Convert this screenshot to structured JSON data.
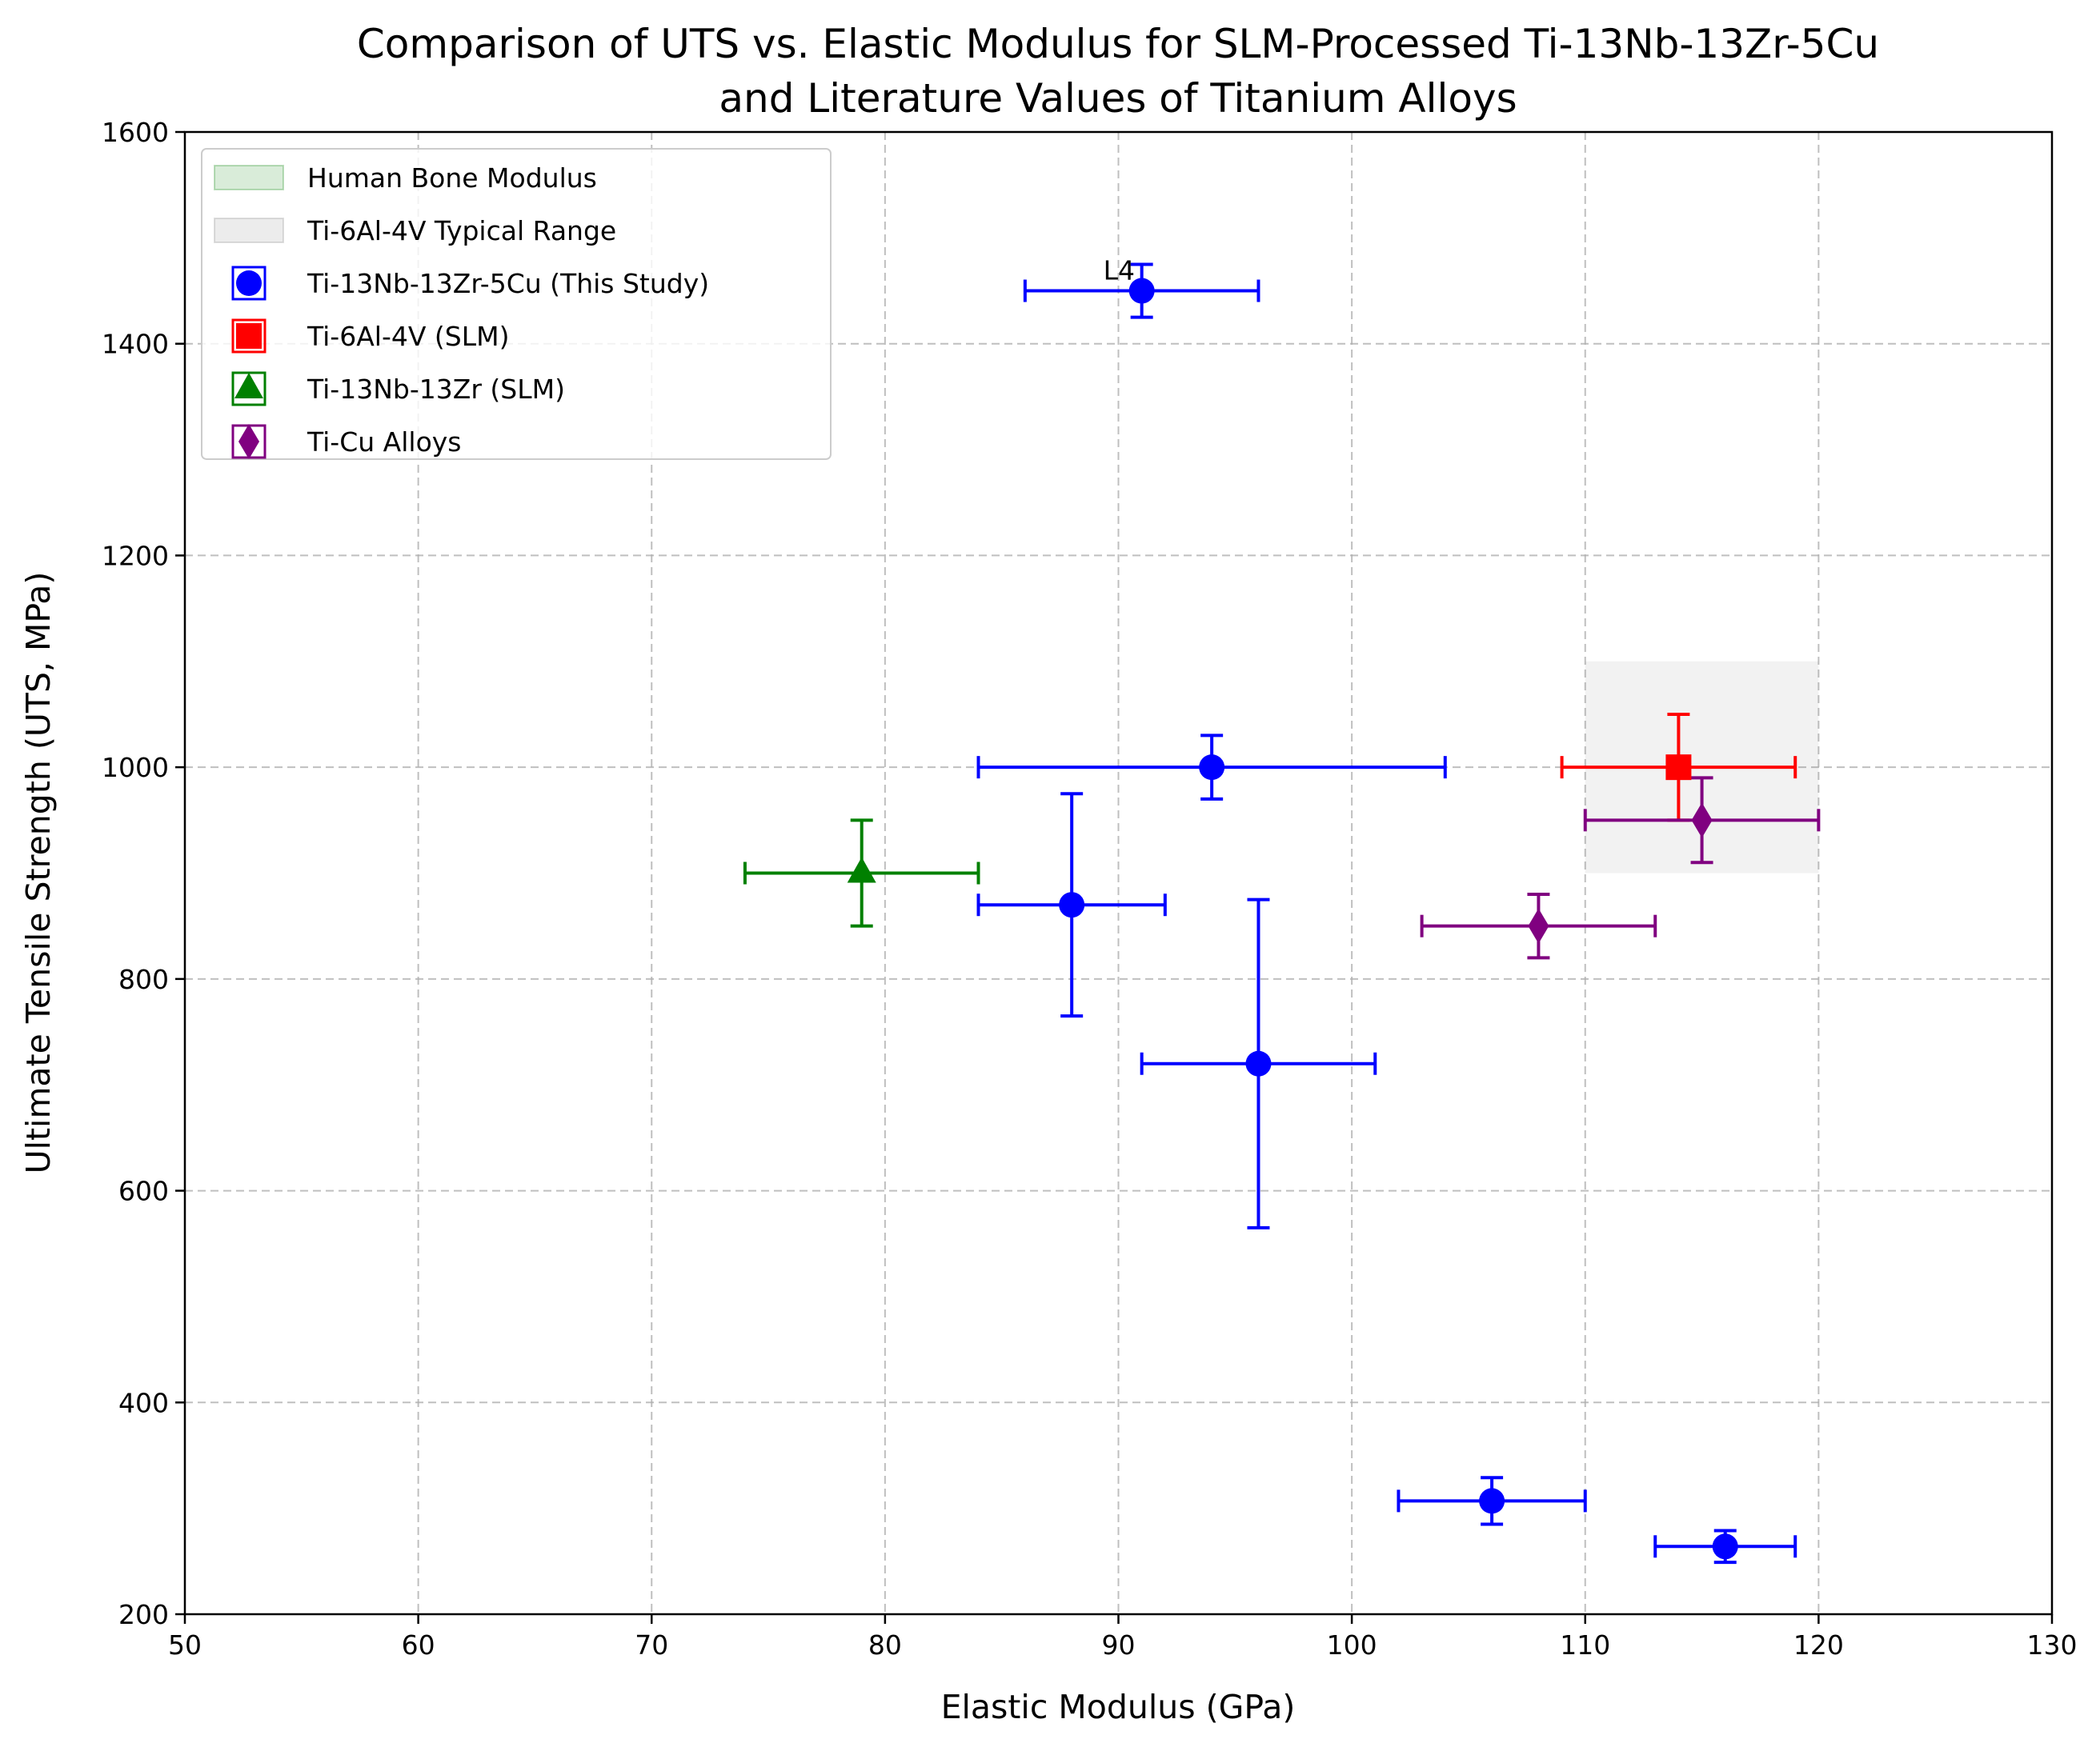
{
  "chart_data": {
    "type": "scatter",
    "title": [
      "Comparison of UTS vs. Elastic Modulus for SLM-Processed Ti-13Nb-13Zr-5Cu",
      "and Literature Values of Titanium Alloys"
    ],
    "xlabel": "Elastic Modulus (GPa)",
    "ylabel": "Ultimate Tensile Strength (UTS, MPa)",
    "xlim": [
      50,
      130
    ],
    "ylim": [
      200,
      1600
    ],
    "xticks": [
      50,
      60,
      70,
      80,
      90,
      100,
      110,
      120,
      130
    ],
    "yticks": [
      200,
      400,
      600,
      800,
      1000,
      1200,
      1400,
      1600
    ],
    "grid": true,
    "legend_position": "upper-left",
    "spans": [
      {
        "name": "Human Bone Modulus",
        "color": "#008000",
        "opacity": 0.1,
        "visible_in_plot": false
      },
      {
        "name": "Ti-6Al-4V Typical Range",
        "color": "#808080",
        "opacity": 0.1,
        "x": [
          110,
          120
        ],
        "y": [
          900,
          1100
        ]
      }
    ],
    "series": [
      {
        "name": "Ti-13Nb-13Zr-5Cu (This Study)",
        "color": "#0000ff",
        "marker": "circle",
        "points": [
          {
            "x": 91,
            "y": 1450,
            "xerr": 5,
            "yerr": 25,
            "label": "L4"
          },
          {
            "x": 94,
            "y": 1000,
            "xerr": 10,
            "yerr": 30
          },
          {
            "x": 88,
            "y": 870,
            "xerr": 4,
            "yerr": 105
          },
          {
            "x": 96,
            "y": 720,
            "xerr": 5,
            "yerr": 155
          },
          {
            "x": 106,
            "y": 307,
            "xerr": 4,
            "yerr": 22
          },
          {
            "x": 116,
            "y": 264,
            "xerr": 3,
            "yerr": 15
          }
        ]
      },
      {
        "name": "Ti-6Al-4V (SLM)",
        "color": "#ff0000",
        "marker": "square",
        "points": [
          {
            "x": 114,
            "y": 1000,
            "xerr": 5,
            "yerr": 50
          }
        ]
      },
      {
        "name": "Ti-13Nb-13Zr (SLM)",
        "color": "#008000",
        "marker": "triangle",
        "points": [
          {
            "x": 79,
            "y": 900,
            "xerr": 5,
            "yerr": 50
          }
        ]
      },
      {
        "name": "Ti-Cu Alloys",
        "color": "#800080",
        "marker": "diamond",
        "points": [
          {
            "x": 108,
            "y": 850,
            "xerr": 5,
            "yerr": 30
          },
          {
            "x": 115,
            "y": 950,
            "xerr": 5,
            "yerr": 40
          }
        ]
      }
    ]
  }
}
